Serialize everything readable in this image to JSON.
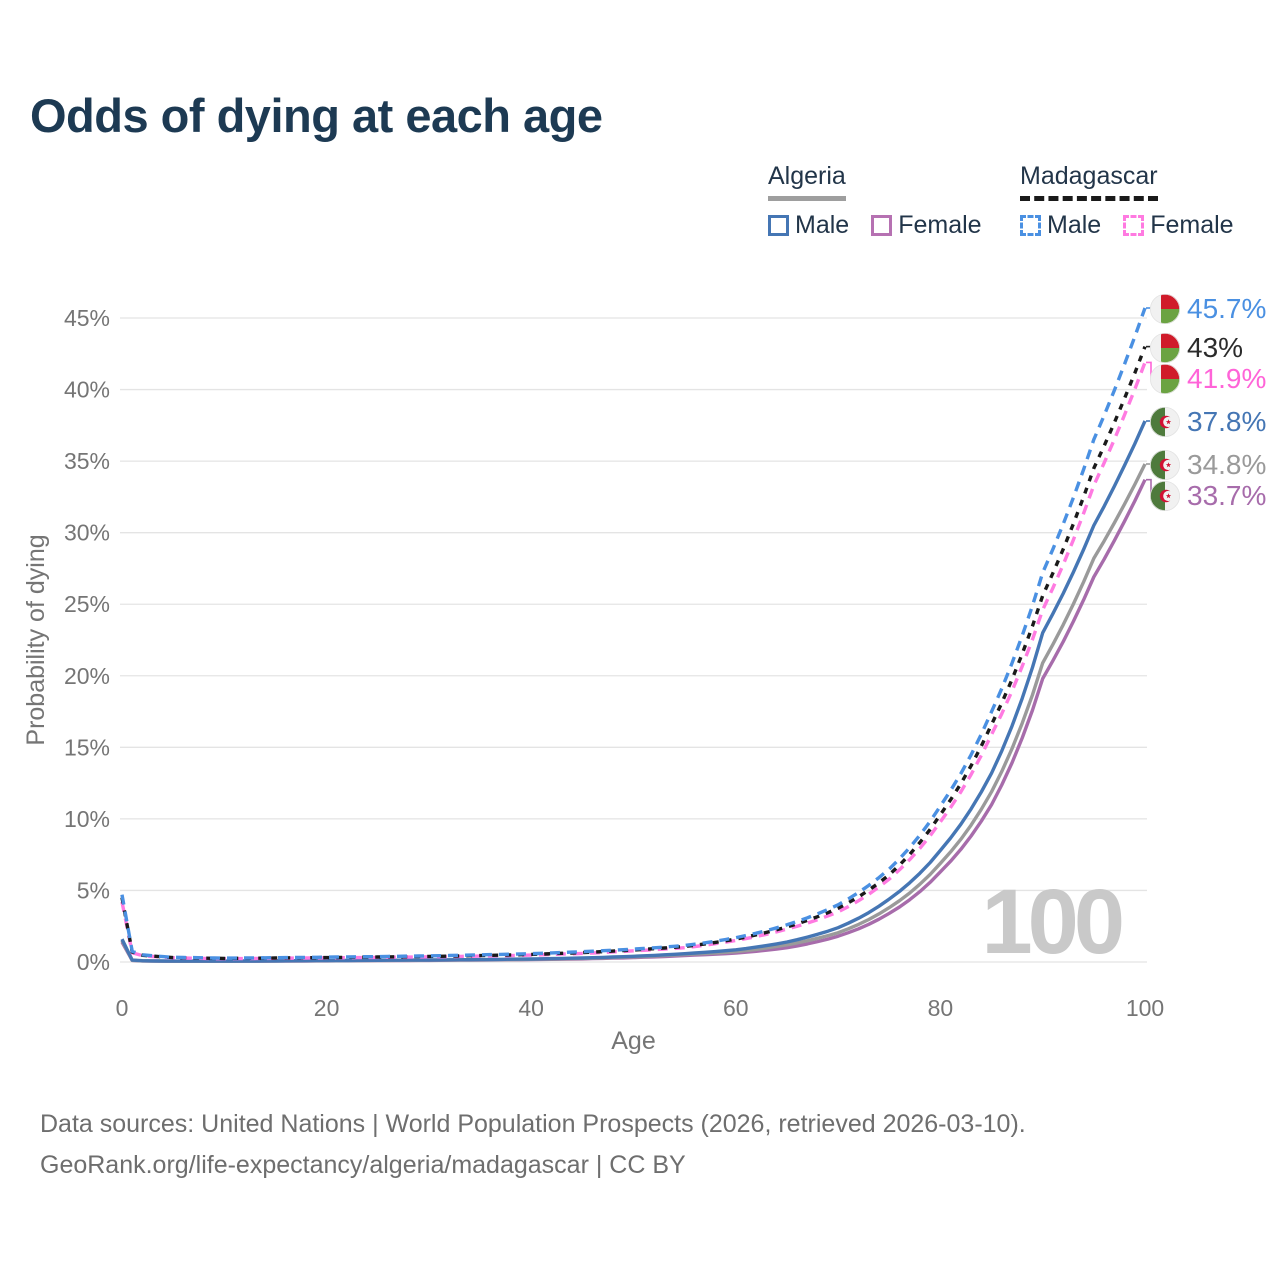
{
  "title": "Odds of dying at each age",
  "colors": {
    "title_text": "#1d3a53",
    "axis_text": "#757575",
    "gridline": "#e4e4e4",
    "watermark_text": "#c9c9c9",
    "footer_text": "#6e6e6e",
    "algeria_male": "#4576b4",
    "algeria_female": "#a76cab",
    "algeria_both": "#9a9a9a",
    "madagascar_male": "#4a90e2",
    "madagascar_female": "#ff7ae1",
    "madagascar_both": "#1a1a1a"
  },
  "legend": {
    "groups": [
      {
        "name": "Algeria",
        "line_color": "#9e9e9e",
        "line_style": "solid",
        "items": [
          {
            "label": "Male",
            "color": "#4576b4",
            "style": "solid"
          },
          {
            "label": "Female",
            "color": "#b671b2",
            "style": "solid"
          }
        ]
      },
      {
        "name": "Madagascar",
        "line_color": "#1a1a1a",
        "line_style": "dashed",
        "items": [
          {
            "label": "Male",
            "color": "#4a90e2",
            "style": "dashed"
          },
          {
            "label": "Female",
            "color": "#ff7ae1",
            "style": "dashed"
          }
        ]
      }
    ]
  },
  "chart_data": {
    "type": "line",
    "title": "Odds of dying at each age",
    "xlabel": "Age",
    "ylabel": "Probability of dying",
    "x_ticks": [
      0,
      20,
      40,
      60,
      80,
      100
    ],
    "y_ticks_pct": [
      0,
      5,
      10,
      15,
      20,
      25,
      30,
      35,
      40,
      45
    ],
    "y_tick_suffix": "%",
    "xlim": [
      0,
      100
    ],
    "ylim_pct": [
      0,
      46
    ],
    "grid": "horizontal",
    "legend_position": "top-right",
    "ages": [
      0,
      1,
      2,
      5,
      10,
      15,
      20,
      25,
      30,
      35,
      40,
      45,
      50,
      55,
      60,
      65,
      70,
      75,
      80,
      85,
      90,
      95,
      100
    ],
    "series": [
      {
        "name": "Algeria Female",
        "country": "Algeria",
        "sex": "Female",
        "color": "#a76cab",
        "dash": false,
        "values_pct": [
          1.4,
          0.11,
          0.075,
          0.05,
          0.05,
          0.06,
          0.08,
          0.095,
          0.115,
          0.14,
          0.17,
          0.22,
          0.31,
          0.45,
          0.62,
          1.0,
          1.8,
          3.4,
          6.3,
          11.0,
          19.8,
          26.9,
          33.7
        ],
        "end_label": "33.7%"
      },
      {
        "name": "Algeria Both sexes",
        "country": "Algeria",
        "sex": "Both",
        "color": "#9a9a9a",
        "dash": false,
        "values_pct": [
          1.5,
          0.12,
          0.08,
          0.055,
          0.055,
          0.07,
          0.09,
          0.11,
          0.13,
          0.155,
          0.19,
          0.25,
          0.36,
          0.52,
          0.72,
          1.2,
          2.05,
          3.8,
          6.9,
          11.9,
          20.9,
          28.2,
          34.8
        ],
        "end_label": "34.8%"
      },
      {
        "name": "Algeria Male",
        "country": "Algeria",
        "sex": "Male",
        "color": "#4576b4",
        "dash": false,
        "values_pct": [
          1.6,
          0.13,
          0.09,
          0.06,
          0.06,
          0.08,
          0.1,
          0.12,
          0.14,
          0.17,
          0.21,
          0.28,
          0.4,
          0.58,
          0.85,
          1.4,
          2.4,
          4.4,
          7.8,
          13.2,
          23.0,
          30.5,
          37.8
        ],
        "end_label": "37.8%"
      },
      {
        "name": "Madagascar Female",
        "country": "Madagascar",
        "sex": "Female",
        "color": "#ff7ae1",
        "dash": true,
        "values_pct": [
          4.2,
          0.65,
          0.44,
          0.29,
          0.23,
          0.26,
          0.29,
          0.32,
          0.36,
          0.41,
          0.48,
          0.6,
          0.78,
          1.0,
          1.5,
          2.3,
          3.5,
          5.8,
          9.8,
          15.9,
          24.6,
          33.3,
          41.9
        ],
        "end_label": "41.9%"
      },
      {
        "name": "Madagascar Both sexes",
        "country": "Madagascar",
        "sex": "Both",
        "color": "#1a1a1a",
        "dash": true,
        "values_pct": [
          4.5,
          0.7,
          0.47,
          0.31,
          0.25,
          0.28,
          0.31,
          0.35,
          0.39,
          0.45,
          0.53,
          0.66,
          0.84,
          1.08,
          1.6,
          2.45,
          3.75,
          6.1,
          10.3,
          16.6,
          25.6,
          34.5,
          43.0
        ],
        "end_label": "43%"
      },
      {
        "name": "Madagascar Male",
        "country": "Madagascar",
        "sex": "Male",
        "color": "#4a90e2",
        "dash": true,
        "values_pct": [
          4.7,
          0.75,
          0.5,
          0.33,
          0.27,
          0.3,
          0.34,
          0.38,
          0.43,
          0.5,
          0.58,
          0.72,
          0.9,
          1.15,
          1.7,
          2.6,
          4.0,
          6.5,
          10.9,
          17.5,
          27.2,
          36.5,
          45.7
        ],
        "end_label": "45.7%"
      }
    ]
  },
  "end_labels": [
    {
      "text": "45.7%",
      "flag": "madagascar",
      "color": "#4a90e2",
      "value_pct": 45.7
    },
    {
      "text": "43%",
      "flag": "madagascar",
      "color": "#2b2b2b",
      "value_pct": 43.0
    },
    {
      "text": "41.9%",
      "flag": "madagascar",
      "color": "#ff64d8",
      "value_pct": 41.9
    },
    {
      "text": "37.8%",
      "flag": "algeria",
      "color": "#4576b4",
      "value_pct": 37.8
    },
    {
      "text": "34.8%",
      "flag": "algeria",
      "color": "#9a9a9a",
      "value_pct": 34.8
    },
    {
      "text": "33.7%",
      "flag": "algeria",
      "color": "#a76cab",
      "value_pct": 33.7
    }
  ],
  "watermark": "100",
  "footer": {
    "line1": "Data sources: United Nations | World Population Prospects (2026, retrieved 2026-03-10).",
    "line2": "GeoRank.org/life-expectancy/algeria/madagascar | CC BY"
  }
}
